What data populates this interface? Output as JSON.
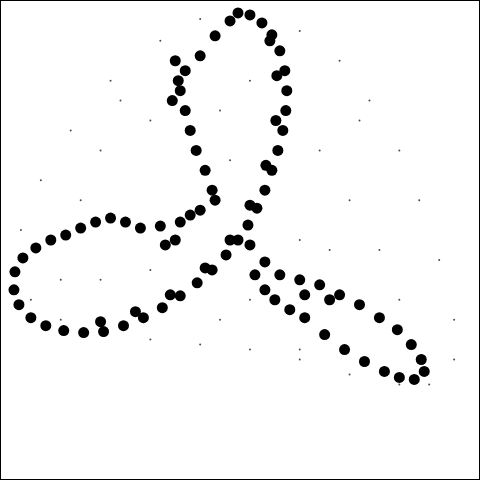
{
  "chart_data": {
    "type": "scatter",
    "xlim": [
      0,
      480
    ],
    "ylim": [
      480,
      0
    ],
    "xticks": [],
    "yticks": [],
    "tick_labels": false,
    "grid": false,
    "series": [
      {
        "color": "#000000",
        "marker": "small",
        "x": [
          240,
          300,
          340,
          370,
          400,
          420,
          440,
          455,
          455,
          430,
          400,
          350,
          300,
          250,
          200,
          150,
          100,
          60,
          30,
          15,
          20,
          40,
          70,
          110,
          160,
          200,
          100,
          150,
          220,
          250,
          320,
          350,
          330,
          380,
          400,
          300,
          100,
          60,
          150,
          220,
          300,
          250,
          120,
          80,
          360,
          230
        ],
        "values": [
          8,
          30,
          60,
          100,
          150,
          200,
          260,
          320,
          360,
          385,
          385,
          375,
          360,
          350,
          345,
          340,
          330,
          320,
          300,
          270,
          230,
          180,
          130,
          80,
          40,
          18,
          150,
          120,
          110,
          80,
          150,
          200,
          250,
          250,
          300,
          240,
          280,
          280,
          270,
          320,
          350,
          300,
          100,
          200,
          120,
          160
        ]
      },
      {
        "color": "#000000",
        "marker": "large",
        "x": [
          238,
          250,
          262,
          272,
          280,
          285,
          287,
          286,
          283,
          278,
          272,
          265,
          257,
          248,
          238,
          226,
          212,
          197,
          180,
          162,
          143,
          123,
          103,
          83,
          63,
          45,
          30,
          18,
          13,
          14,
          22,
          35,
          50,
          65,
          80,
          95,
          110,
          125,
          140,
          160,
          180,
          200,
          215,
          270,
          277,
          276,
          266,
          250,
          230,
          205,
          170,
          135,
          100,
          230,
          215,
          200,
          185,
          180,
          185,
          190,
          196,
          205,
          212,
          190,
          175,
          165,
          175,
          178,
          172,
          250,
          265,
          280,
          300,
          320,
          340,
          360,
          380,
          398,
          412,
          422,
          425,
          415,
          400,
          385,
          365,
          345,
          325,
          305,
          290,
          275,
          265,
          255,
          330,
          305
        ],
        "values": [
          12,
          14,
          22,
          34,
          50,
          70,
          90,
          110,
          130,
          150,
          170,
          190,
          208,
          225,
          240,
          255,
          270,
          283,
          296,
          308,
          318,
          326,
          332,
          333,
          331,
          326,
          318,
          305,
          290,
          272,
          258,
          248,
          240,
          235,
          228,
          222,
          218,
          222,
          228,
          226,
          222,
          210,
          200,
          40,
          75,
          120,
          165,
          205,
          240,
          268,
          295,
          312,
          322,
          20,
          35,
          55,
          70,
          90,
          110,
          130,
          150,
          170,
          190,
          215,
          240,
          245,
          60,
          80,
          100,
          245,
          262,
          275,
          280,
          285,
          295,
          305,
          318,
          330,
          345,
          360,
          372,
          380,
          378,
          372,
          362,
          350,
          335,
          318,
          310,
          300,
          290,
          275,
          300,
          295
        ]
      }
    ]
  }
}
